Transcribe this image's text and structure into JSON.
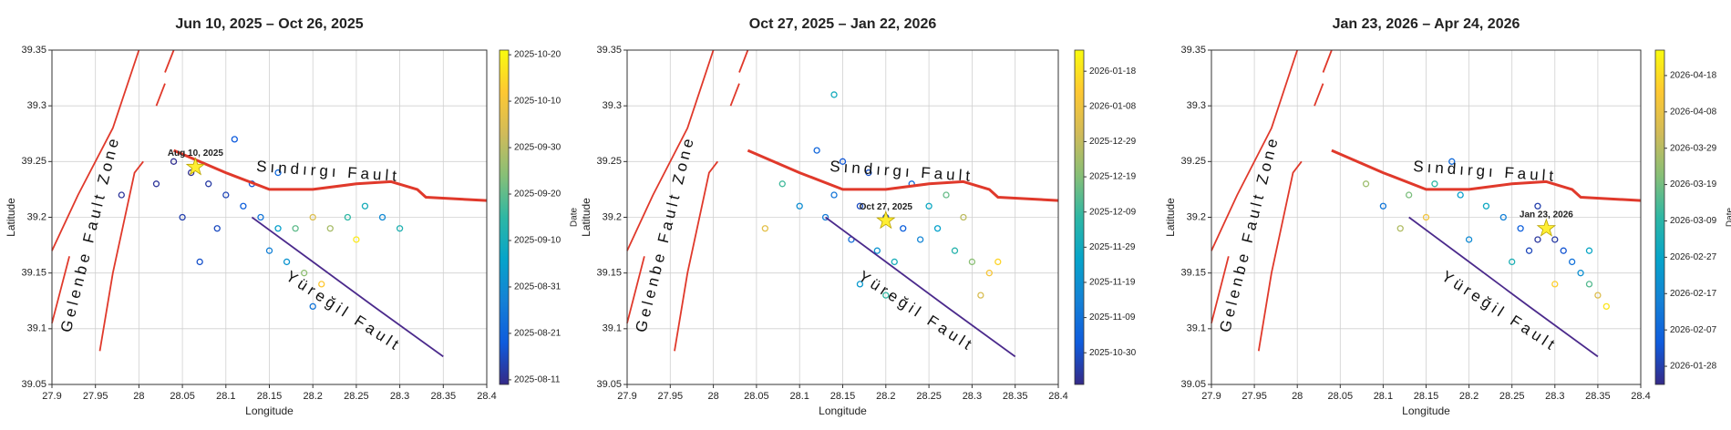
{
  "chart_data": [
    {
      "type": "scatter",
      "title": "Jun 10, 2025 – Oct 26, 2025",
      "xlabel": "Longitude",
      "ylabel": "Latitude",
      "xlim": [
        27.9,
        28.4
      ],
      "xticks": [
        27.9,
        27.95,
        28,
        28.05,
        28.1,
        28.15,
        28.2,
        28.25,
        28.3,
        28.35,
        28.4
      ],
      "ylim": [
        39.05,
        39.35
      ],
      "yticks": [
        39.05,
        39.1,
        39.15,
        39.2,
        39.25,
        39.3,
        39.35
      ],
      "grid": true,
      "colormap": [
        "#352a87",
        "#0f5cdd",
        "#1481d6",
        "#06a4ca",
        "#2eb7a4",
        "#87bf77",
        "#d1bb59",
        "#fec832",
        "#f9fb0e"
      ],
      "colorbar": {
        "label": "Date",
        "clim": [
          "2025-08-10",
          "2025-10-21"
        ],
        "ticks": [
          "2025-08-11",
          "2025-08-21",
          "2025-08-31",
          "2025-09-10",
          "2025-09-20",
          "2025-09-30",
          "2025-10-10",
          "2025-10-20"
        ]
      },
      "points": {
        "x": [
          28.02,
          28.04,
          28.06,
          28.08,
          28.1,
          28.12,
          28.14,
          28.16,
          28.18,
          28.2,
          28.22,
          28.24,
          28.26,
          28.28,
          28.15,
          28.17,
          28.19,
          28.21,
          28.13,
          28.16,
          28.09,
          28.05,
          27.98,
          28.11,
          28.25,
          28.3,
          28.2,
          28.07
        ],
        "y": [
          39.23,
          39.25,
          39.24,
          39.23,
          39.22,
          39.21,
          39.2,
          39.19,
          39.19,
          39.2,
          39.19,
          39.2,
          39.21,
          39.2,
          39.17,
          39.16,
          39.15,
          39.14,
          39.23,
          39.24,
          39.19,
          39.2,
          39.22,
          39.27,
          39.18,
          39.19,
          39.12,
          39.16
        ],
        "dates": [
          "2025-08-12",
          "2025-08-11",
          "2025-08-11",
          "2025-08-13",
          "2025-08-15",
          "2025-08-20",
          "2025-08-25",
          "2025-09-05",
          "2025-09-20",
          "2025-10-05",
          "2025-09-28",
          "2025-09-15",
          "2025-09-10",
          "2025-08-30",
          "2025-08-28",
          "2025-09-02",
          "2025-09-25",
          "2025-10-12",
          "2025-08-18",
          "2025-08-22",
          "2025-08-16",
          "2025-08-14",
          "2025-08-12",
          "2025-08-19",
          "2025-10-18",
          "2025-09-12",
          "2025-08-25",
          "2025-08-17"
        ]
      },
      "mainshock": {
        "label": "Aug 10, 2025",
        "x": 28.065,
        "y": 39.245,
        "color": "#ffee33"
      },
      "faults": [
        {
          "name": "Sındırgı Fault",
          "color": "#e0392b",
          "x": [
            28.04,
            28.1,
            28.15,
            28.2,
            28.25,
            28.29,
            28.32,
            28.33,
            28.4
          ],
          "y": [
            39.26,
            39.24,
            39.225,
            39.225,
            39.23,
            39.232,
            39.225,
            39.218,
            39.215
          ]
        },
        {
          "name": "Yüreğil Fault",
          "color": "#4b2a8c",
          "x": [
            28.13,
            28.2,
            28.27,
            28.35
          ],
          "y": [
            39.2,
            39.16,
            39.12,
            39.075
          ]
        },
        {
          "name": "Gelenbe Fault Zone",
          "color": "#e0392b",
          "x": [
            27.9,
            27.93,
            27.97,
            28.0,
            null,
            27.9,
            27.92,
            null,
            27.955,
            27.97,
            27.995,
            28.005,
            null,
            28.02,
            28.03,
            null,
            28.03,
            28.04
          ],
          "y": [
            39.17,
            39.22,
            39.28,
            39.35,
            null,
            39.105,
            39.165,
            null,
            39.08,
            39.15,
            39.24,
            39.25,
            null,
            39.3,
            39.32,
            null,
            39.33,
            39.35
          ]
        }
      ]
    },
    {
      "type": "scatter",
      "title": "Oct 27, 2025 – Jan 22, 2026",
      "xlabel": "Longitude",
      "ylabel": "Latitude",
      "xlim": [
        27.9,
        28.4
      ],
      "xticks": [
        27.9,
        27.95,
        28,
        28.05,
        28.1,
        28.15,
        28.2,
        28.25,
        28.3,
        28.35,
        28.4
      ],
      "ylim": [
        39.05,
        39.35
      ],
      "yticks": [
        39.05,
        39.1,
        39.15,
        39.2,
        39.25,
        39.3,
        39.35
      ],
      "grid": true,
      "colormap": [
        "#352a87",
        "#0f5cdd",
        "#1481d6",
        "#06a4ca",
        "#2eb7a4",
        "#87bf77",
        "#d1bb59",
        "#fec832",
        "#f9fb0e"
      ],
      "colorbar": {
        "clim": [
          "2025-10-21",
          "2026-01-24"
        ],
        "ticks": [
          "2025-10-30",
          "2025-11-09",
          "2025-11-19",
          "2025-11-29",
          "2025-12-09",
          "2025-12-19",
          "2025-12-29",
          "2026-01-08",
          "2026-01-18"
        ]
      },
      "points": {
        "x": [
          28.12,
          28.15,
          28.18,
          28.14,
          28.17,
          28.2,
          28.22,
          28.24,
          28.26,
          28.28,
          28.3,
          28.32,
          28.33,
          28.16,
          28.19,
          28.21,
          28.13,
          28.1,
          28.08,
          28.25,
          28.27,
          28.29,
          28.17,
          28.2,
          28.14,
          28.06,
          28.31,
          28.23
        ],
        "y": [
          39.26,
          39.25,
          39.24,
          39.22,
          39.21,
          39.2,
          39.19,
          39.18,
          39.19,
          39.17,
          39.16,
          39.15,
          39.16,
          39.18,
          39.17,
          39.16,
          39.2,
          39.21,
          39.23,
          39.21,
          39.22,
          39.2,
          39.14,
          39.13,
          39.31,
          39.19,
          39.13,
          39.23
        ],
        "dates": [
          "2025-11-05",
          "2025-11-01",
          "2025-10-30",
          "2025-11-10",
          "2025-10-29",
          "2025-10-28",
          "2025-11-03",
          "2025-11-15",
          "2025-11-25",
          "2025-12-05",
          "2025-12-20",
          "2026-01-10",
          "2026-01-15",
          "2025-11-08",
          "2025-11-20",
          "2025-12-01",
          "2025-11-12",
          "2025-11-18",
          "2025-12-10",
          "2025-11-28",
          "2025-12-15",
          "2025-12-28",
          "2025-11-22",
          "2025-12-08",
          "2025-11-30",
          "2026-01-05",
          "2026-01-02",
          "2025-11-06"
        ]
      },
      "mainshock": {
        "label": "Oct 27, 2025",
        "x": 28.2,
        "y": 39.197,
        "color": "#ffee33"
      },
      "faults": [
        {
          "name": "Sındırgı Fault",
          "color": "#e0392b",
          "x": [
            28.04,
            28.1,
            28.15,
            28.2,
            28.25,
            28.29,
            28.32,
            28.33,
            28.4
          ],
          "y": [
            39.26,
            39.24,
            39.225,
            39.225,
            39.23,
            39.232,
            39.225,
            39.218,
            39.215
          ]
        },
        {
          "name": "Yüreğil Fault",
          "color": "#4b2a8c",
          "x": [
            28.13,
            28.2,
            28.27,
            28.35
          ],
          "y": [
            39.2,
            39.16,
            39.12,
            39.075
          ]
        },
        {
          "name": "Gelenbe Fault Zone",
          "color": "#e0392b",
          "x": [
            27.9,
            27.93,
            27.97,
            28.0,
            null,
            27.9,
            27.92,
            null,
            27.955,
            27.97,
            27.995,
            28.005,
            null,
            28.02,
            28.03,
            null,
            28.03,
            28.04
          ],
          "y": [
            39.17,
            39.22,
            39.28,
            39.35,
            null,
            39.105,
            39.165,
            null,
            39.08,
            39.15,
            39.24,
            39.25,
            null,
            39.3,
            39.32,
            null,
            39.33,
            39.35
          ]
        }
      ]
    },
    {
      "type": "scatter",
      "title": "Jan 23, 2026 – Apr 24, 2026",
      "xlabel": "Longitude",
      "ylabel": "Latitude",
      "xlim": [
        27.9,
        28.4
      ],
      "xticks": [
        27.9,
        27.95,
        28,
        28.05,
        28.1,
        28.15,
        28.2,
        28.25,
        28.3,
        28.35,
        28.4
      ],
      "ylim": [
        39.05,
        39.35
      ],
      "yticks": [
        39.05,
        39.1,
        39.15,
        39.2,
        39.25,
        39.3,
        39.35
      ],
      "grid": true,
      "colormap": [
        "#352a87",
        "#0f5cdd",
        "#1481d6",
        "#06a4ca",
        "#2eb7a4",
        "#87bf77",
        "#d1bb59",
        "#fec832",
        "#f9fb0e"
      ],
      "colorbar": {
        "label": "Date",
        "clim": [
          "2026-01-23",
          "2026-04-25"
        ],
        "ticks": [
          "2026-01-28",
          "2026-02-07",
          "2026-02-17",
          "2026-02-27",
          "2026-03-09",
          "2026-03-19",
          "2026-03-29",
          "2026-04-08",
          "2026-04-18"
        ]
      },
      "points": {
        "x": [
          28.29,
          28.28,
          28.3,
          28.31,
          28.27,
          28.32,
          28.33,
          28.34,
          28.35,
          28.26,
          28.24,
          28.22,
          28.19,
          28.16,
          28.13,
          28.1,
          28.08,
          28.15,
          28.2,
          28.25,
          28.3,
          28.36,
          28.18,
          28.12,
          28.28,
          28.34
        ],
        "y": [
          39.19,
          39.18,
          39.18,
          39.17,
          39.17,
          39.16,
          39.15,
          39.14,
          39.13,
          39.19,
          39.2,
          39.21,
          39.22,
          39.23,
          39.22,
          39.21,
          39.23,
          39.2,
          39.18,
          39.16,
          39.14,
          39.12,
          39.25,
          39.19,
          39.21,
          39.17
        ],
        "dates": [
          "2026-01-24",
          "2026-01-26",
          "2026-01-27",
          "2026-02-02",
          "2026-01-30",
          "2026-02-10",
          "2026-02-20",
          "2026-03-15",
          "2026-04-05",
          "2026-02-05",
          "2026-02-15",
          "2026-03-01",
          "2026-02-25",
          "2026-03-10",
          "2026-03-20",
          "2026-02-12",
          "2026-03-25",
          "2026-04-10",
          "2026-02-18",
          "2026-03-05",
          "2026-04-15",
          "2026-04-20",
          "2026-02-08",
          "2026-03-28",
          "2026-01-28",
          "2026-02-28"
        ]
      },
      "mainshock": {
        "label": "Jan 23, 2026",
        "x": 28.29,
        "y": 39.19,
        "color": "#ffee33"
      },
      "faults": [
        {
          "name": "Sındırgı Fault",
          "color": "#e0392b",
          "x": [
            28.04,
            28.1,
            28.15,
            28.2,
            28.25,
            28.29,
            28.32,
            28.33,
            28.4
          ],
          "y": [
            39.26,
            39.24,
            39.225,
            39.225,
            39.23,
            39.232,
            39.225,
            39.218,
            39.215
          ]
        },
        {
          "name": "Yüreğil Fault",
          "color": "#4b2a8c",
          "x": [
            28.13,
            28.2,
            28.27,
            28.35
          ],
          "y": [
            39.2,
            39.16,
            39.12,
            39.075
          ]
        },
        {
          "name": "Gelenbe Fault Zone",
          "color": "#e0392b",
          "x": [
            27.9,
            27.93,
            27.97,
            28.0,
            null,
            27.9,
            27.92,
            null,
            27.955,
            27.97,
            27.995,
            28.005,
            null,
            28.02,
            28.03,
            null,
            28.03,
            28.04
          ],
          "y": [
            39.17,
            39.22,
            39.28,
            39.35,
            null,
            39.105,
            39.165,
            null,
            39.08,
            39.15,
            39.24,
            39.25,
            null,
            39.3,
            39.32,
            null,
            39.33,
            39.35
          ]
        }
      ]
    }
  ]
}
